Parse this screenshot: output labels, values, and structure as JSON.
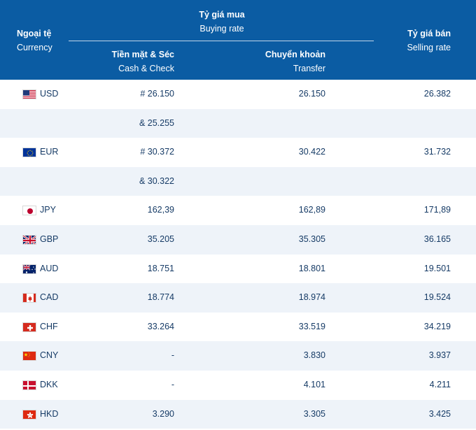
{
  "header": {
    "currency_vi": "Ngoại tệ",
    "currency_en": "Currency",
    "buying_vi": "Tỷ giá mua",
    "buying_en": "Buying rate",
    "cash_vi": "Tiền mặt & Séc",
    "cash_en": "Cash & Check",
    "transfer_vi": "Chuyển khoản",
    "transfer_en": "Transfer",
    "selling_vi": "Tỷ giá bán",
    "selling_en": "Selling rate"
  },
  "rows": [
    {
      "code": "USD",
      "flag": "us-flag-icon",
      "cash": "# 26.150",
      "transfer": "26.150",
      "sell": "26.382"
    },
    {
      "code": "",
      "flag": "",
      "cash": "& 25.255",
      "transfer": "",
      "sell": ""
    },
    {
      "code": "EUR",
      "flag": "eu-flag-icon",
      "cash": "# 30.372",
      "transfer": "30.422",
      "sell": "31.732"
    },
    {
      "code": "",
      "flag": "",
      "cash": "& 30.322",
      "transfer": "",
      "sell": ""
    },
    {
      "code": "JPY",
      "flag": "jp-flag-icon",
      "cash": "162,39",
      "transfer": "162,89",
      "sell": "171,89"
    },
    {
      "code": "GBP",
      "flag": "gb-flag-icon",
      "cash": "35.205",
      "transfer": "35.305",
      "sell": "36.165"
    },
    {
      "code": "AUD",
      "flag": "au-flag-icon",
      "cash": "18.751",
      "transfer": "18.801",
      "sell": "19.501"
    },
    {
      "code": "CAD",
      "flag": "ca-flag-icon",
      "cash": "18.774",
      "transfer": "18.974",
      "sell": "19.524"
    },
    {
      "code": "CHF",
      "flag": "ch-flag-icon",
      "cash": "33.264",
      "transfer": "33.519",
      "sell": "34.219"
    },
    {
      "code": "CNY",
      "flag": "cn-flag-icon",
      "cash": "-",
      "transfer": "3.830",
      "sell": "3.937"
    },
    {
      "code": "DKK",
      "flag": "dk-flag-icon",
      "cash": "-",
      "transfer": "4.101",
      "sell": "4.211"
    },
    {
      "code": "HKD",
      "flag": "hk-flag-icon",
      "cash": "3.290",
      "transfer": "3.305",
      "sell": "3.425"
    }
  ],
  "colors": {
    "header_bg": "#0b5ca3",
    "text": "#163b66",
    "stripe": "#eef3f9"
  }
}
